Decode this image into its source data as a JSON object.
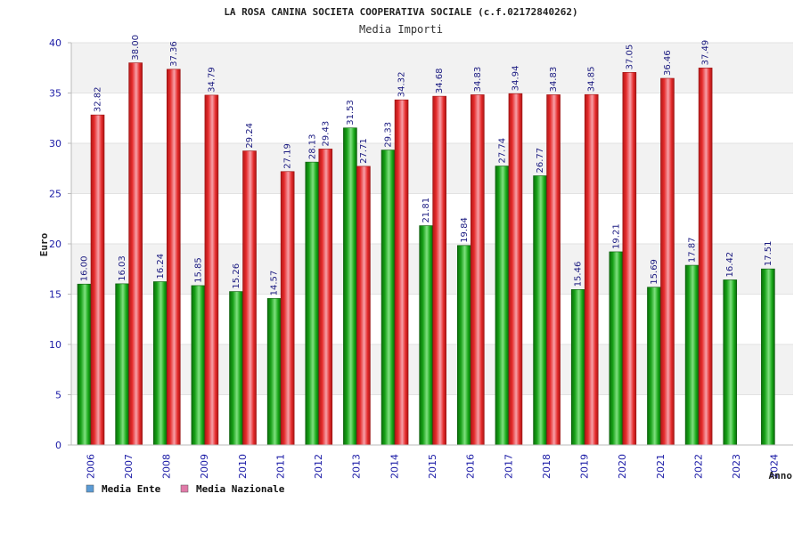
{
  "chart_data": {
    "type": "bar",
    "title": "LA ROSA CANINA SOCIETA COOPERATIVA SOCIALE (c.f.02172840262)",
    "subtitle": "Media Importi",
    "xlabel": "Anno",
    "ylabel": "Euro",
    "ylim": [
      0,
      40
    ],
    "yticks": [
      0,
      5,
      10,
      15,
      20,
      25,
      30,
      35,
      40
    ],
    "grid": true,
    "legend_position": "bottom-left",
    "categories": [
      "2006",
      "2007",
      "2008",
      "2009",
      "2010",
      "2011",
      "2012",
      "2013",
      "2014",
      "2015",
      "2016",
      "2017",
      "2018",
      "2019",
      "2020",
      "2021",
      "2022",
      "2023",
      "2024"
    ],
    "series": [
      {
        "name": "Media Ente",
        "legend_color": "#5b9bd5",
        "bar_color": "#1aa81a",
        "values": [
          16.0,
          16.03,
          16.24,
          15.85,
          15.26,
          14.57,
          28.13,
          31.53,
          29.33,
          21.81,
          19.84,
          27.74,
          26.77,
          15.46,
          19.21,
          15.69,
          17.87,
          16.42,
          17.51
        ],
        "labels": [
          "16.00",
          "16.03",
          "16.24",
          "15.85",
          "15.26",
          "14.57",
          "28.13",
          "31.53",
          "29.33",
          "21.81",
          "19.84",
          "27.74",
          "26.77",
          "15.46",
          "19.21",
          "15.69",
          "17.87",
          "16.42",
          "17.51"
        ]
      },
      {
        "name": "Media Nazionale",
        "legend_color": "#e07aa8",
        "bar_color": "#e52b2b",
        "values": [
          32.82,
          38.0,
          37.36,
          34.79,
          29.24,
          27.19,
          29.43,
          27.71,
          34.32,
          34.68,
          34.83,
          34.94,
          34.83,
          34.85,
          37.05,
          36.46,
          37.49,
          null,
          null
        ],
        "labels": [
          "32.82",
          "38.00",
          "37.36",
          "34.79",
          "29.24",
          "27.19",
          "29.43",
          "27.71",
          "34.32",
          "34.68",
          "34.83",
          "34.94",
          "34.83",
          "34.85",
          "37.05",
          "36.46",
          "37.49",
          "",
          ""
        ]
      }
    ]
  }
}
